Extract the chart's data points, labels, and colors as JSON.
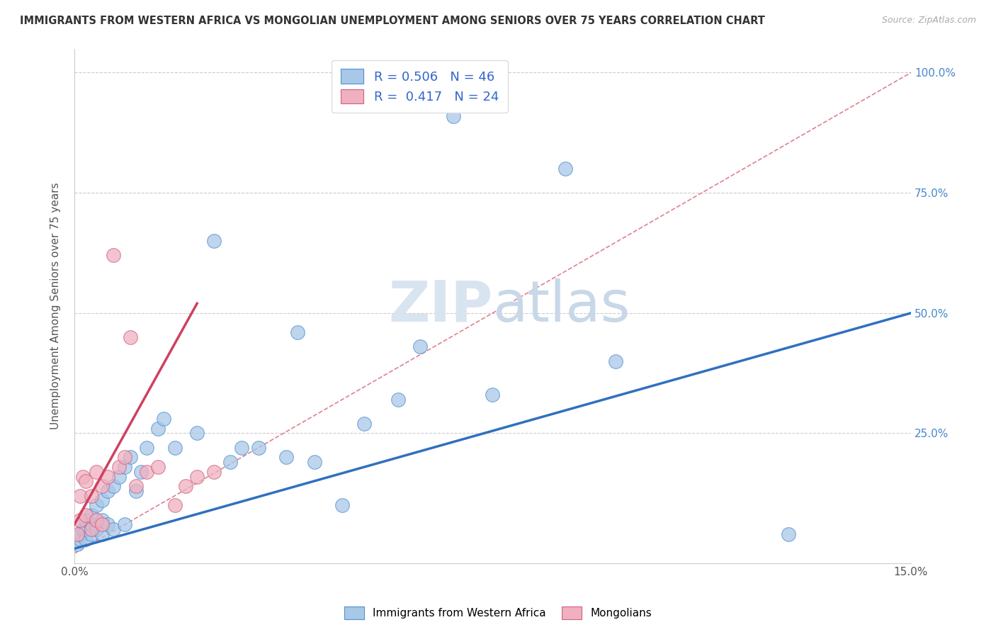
{
  "title": "IMMIGRANTS FROM WESTERN AFRICA VS MONGOLIAN UNEMPLOYMENT AMONG SENIORS OVER 75 YEARS CORRELATION CHART",
  "source": "Source: ZipAtlas.com",
  "ylabel": "Unemployment Among Seniors over 75 years",
  "xlim": [
    0.0,
    0.15
  ],
  "ylim": [
    -0.02,
    1.05
  ],
  "blue_R": "0.506",
  "blue_N": "46",
  "pink_R": "0.417",
  "pink_N": "24",
  "blue_color": "#a8c8e8",
  "pink_color": "#f0b0c0",
  "blue_edge_color": "#5090d0",
  "pink_edge_color": "#d06080",
  "blue_line_color": "#3070c0",
  "pink_line_color": "#d04060",
  "diag_color": "#e08090",
  "watermark_color": "#d8e4f0",
  "blue_scatter_x": [
    0.0005,
    0.001,
    0.001,
    0.0015,
    0.002,
    0.002,
    0.002,
    0.003,
    0.003,
    0.003,
    0.004,
    0.004,
    0.005,
    0.005,
    0.005,
    0.006,
    0.006,
    0.007,
    0.007,
    0.008,
    0.009,
    0.009,
    0.01,
    0.011,
    0.012,
    0.013,
    0.015,
    0.016,
    0.018,
    0.022,
    0.025,
    0.028,
    0.03,
    0.033,
    0.038,
    0.04,
    0.043,
    0.048,
    0.052,
    0.058,
    0.062,
    0.068,
    0.075,
    0.088,
    0.097,
    0.128
  ],
  "blue_scatter_y": [
    0.02,
    0.03,
    0.04,
    0.05,
    0.03,
    0.05,
    0.07,
    0.04,
    0.06,
    0.08,
    0.05,
    0.1,
    0.04,
    0.07,
    0.11,
    0.06,
    0.13,
    0.05,
    0.14,
    0.16,
    0.06,
    0.18,
    0.2,
    0.13,
    0.17,
    0.22,
    0.26,
    0.28,
    0.22,
    0.25,
    0.65,
    0.19,
    0.22,
    0.22,
    0.2,
    0.46,
    0.19,
    0.1,
    0.27,
    0.32,
    0.43,
    0.91,
    0.33,
    0.8,
    0.4,
    0.04
  ],
  "pink_scatter_x": [
    0.0005,
    0.001,
    0.001,
    0.0015,
    0.002,
    0.002,
    0.003,
    0.003,
    0.004,
    0.004,
    0.005,
    0.005,
    0.006,
    0.007,
    0.008,
    0.009,
    0.01,
    0.011,
    0.013,
    0.015,
    0.018,
    0.02,
    0.022,
    0.025
  ],
  "pink_scatter_y": [
    0.04,
    0.07,
    0.12,
    0.16,
    0.08,
    0.15,
    0.05,
    0.12,
    0.07,
    0.17,
    0.06,
    0.14,
    0.16,
    0.62,
    0.18,
    0.2,
    0.45,
    0.14,
    0.17,
    0.18,
    0.1,
    0.14,
    0.16,
    0.17
  ],
  "blue_line_x": [
    0.0,
    0.15
  ],
  "blue_line_y": [
    0.01,
    0.5
  ],
  "pink_line_x": [
    0.0,
    0.022
  ],
  "pink_line_y": [
    0.06,
    0.52
  ],
  "diag_line_x": [
    0.0,
    0.15
  ],
  "diag_line_y": [
    0.0,
    1.0
  ]
}
